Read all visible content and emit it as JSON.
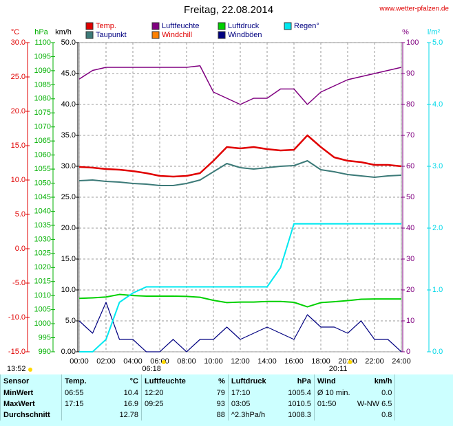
{
  "chart_data": {
    "type": "line",
    "title": "Freitag, 22.08.2014",
    "source": "www.wetter-pfalzen.de",
    "timestamp": "13:52",
    "sunrise": {
      "x": 6.3,
      "label": "06:18"
    },
    "sunset": {
      "x": 20.18,
      "label": "20:11"
    },
    "grid": true,
    "x": [
      0,
      1,
      2,
      3,
      4,
      5,
      6,
      7,
      8,
      9,
      10,
      11,
      12,
      13,
      14,
      15,
      16,
      17,
      18,
      19,
      20,
      21,
      22,
      23,
      24
    ],
    "xlim": [
      0,
      24
    ],
    "xticks": [
      {
        "value": 0,
        "label": "00:00"
      },
      {
        "value": 2,
        "label": "02:00"
      },
      {
        "value": 4,
        "label": "04:00"
      },
      {
        "value": 6,
        "label": "06:00"
      },
      {
        "value": 8,
        "label": "08:00"
      },
      {
        "value": 10,
        "label": "10:00"
      },
      {
        "value": 12,
        "label": "12:00"
      },
      {
        "value": 14,
        "label": "14:00"
      },
      {
        "value": 16,
        "label": "16:00"
      },
      {
        "value": 18,
        "label": "18:00"
      },
      {
        "value": 20,
        "label": "20:00"
      },
      {
        "value": 22,
        "label": "22:00"
      },
      {
        "value": 24,
        "label": "24:00"
      }
    ],
    "axes": [
      {
        "label": "°C",
        "color": "#e00000",
        "lim": [
          -15,
          30
        ],
        "ticks": [
          {
            "value": 30,
            "label": "30.0"
          },
          {
            "value": 25,
            "label": "25.0"
          },
          {
            "value": 20,
            "label": "20.0"
          },
          {
            "value": 15,
            "label": "15.0"
          },
          {
            "value": 10,
            "label": "10.0"
          },
          {
            "value": 5,
            "label": "5.0"
          },
          {
            "value": 0,
            "label": "0.0"
          },
          {
            "value": -5,
            "label": "-5.0"
          },
          {
            "value": -10,
            "label": "-10.0"
          },
          {
            "value": -15,
            "label": "-15.0"
          }
        ]
      },
      {
        "label": "hPa",
        "color": "#00b000",
        "lim": [
          990,
          1100
        ],
        "ticks": [
          1100,
          1095,
          1090,
          1085,
          1080,
          1075,
          1070,
          1065,
          1060,
          1055,
          1050,
          1045,
          1040,
          1035,
          1030,
          1025,
          1020,
          1015,
          1010,
          1005,
          1000,
          995,
          990
        ]
      },
      {
        "label": "km/h",
        "color": "#000000",
        "lim": [
          0,
          50
        ],
        "ticks": [
          {
            "value": 50,
            "label": "50.0"
          },
          {
            "value": 45,
            "label": "45.0"
          },
          {
            "value": 40,
            "label": "40.0"
          },
          {
            "value": 35,
            "label": "35.0"
          },
          {
            "value": 30,
            "label": "30.0"
          },
          {
            "value": 25,
            "label": "25.0"
          },
          {
            "value": 20,
            "label": "20.0"
          },
          {
            "value": 15,
            "label": "15.0"
          },
          {
            "value": 10,
            "label": "10.0"
          },
          {
            "value": 5,
            "label": "5.0"
          },
          {
            "value": 0,
            "label": "0.00"
          }
        ]
      },
      {
        "label": "%",
        "color": "#800080",
        "lim": [
          0,
          100
        ],
        "ticks": [
          100,
          90,
          80,
          70,
          60,
          50,
          40,
          30,
          20,
          10,
          0
        ]
      },
      {
        "label": "l/m²",
        "color": "#00d8e8",
        "lim": [
          0,
          5
        ],
        "ticks": [
          {
            "value": 5,
            "label": "5.0"
          },
          {
            "value": 4,
            "label": "4.0"
          },
          {
            "value": 3,
            "label": "3.0"
          },
          {
            "value": 2,
            "label": "2.0"
          },
          {
            "value": 1,
            "label": "1.0"
          },
          {
            "value": 0,
            "label": "0.0"
          }
        ]
      }
    ],
    "series": [
      {
        "name": "Temp.",
        "color": "#e00000",
        "axis": 0,
        "values": [
          11.9,
          11.8,
          11.6,
          11.5,
          11.3,
          11.0,
          10.6,
          10.5,
          10.6,
          11.0,
          12.8,
          14.8,
          14.6,
          14.8,
          14.5,
          14.3,
          14.4,
          16.5,
          14.8,
          13.3,
          12.8,
          12.6,
          12.2,
          12.2,
          12.0
        ]
      },
      {
        "name": "Taupunkt",
        "color": "#3c7a78",
        "axis": 0,
        "values": [
          9.9,
          10.0,
          9.8,
          9.7,
          9.5,
          9.4,
          9.2,
          9.2,
          9.5,
          10.0,
          11.2,
          12.4,
          11.8,
          11.6,
          11.8,
          12.0,
          12.1,
          12.8,
          11.5,
          11.2,
          10.8,
          10.6,
          10.4,
          10.6,
          10.7
        ]
      },
      {
        "name": "Luftfeuchte",
        "color": "#800080",
        "axis": 3,
        "values": [
          88.2,
          91,
          92,
          92,
          92,
          92,
          92,
          92,
          92,
          92.5,
          84,
          82,
          80,
          82,
          82,
          85,
          85,
          80,
          84,
          86,
          88,
          89,
          90,
          91,
          92
        ]
      },
      {
        "name": "Windchill",
        "color": "#ff8000",
        "axis": 0,
        "values": [
          null,
          null,
          null,
          null,
          null,
          null,
          null,
          null,
          null,
          null,
          null,
          null,
          null,
          null,
          null,
          null,
          null,
          null,
          null,
          null,
          null,
          null,
          null,
          null,
          null
        ]
      },
      {
        "name": "Luftdruck",
        "color": "#00d000",
        "axis": 1,
        "values": [
          1009.0,
          1009.2,
          1009.5,
          1010.4,
          1010.0,
          1009.8,
          1009.8,
          1009.8,
          1009.7,
          1009.4,
          1008.3,
          1007.5,
          1007.7,
          1007.7,
          1007.9,
          1007.9,
          1007.6,
          1006.0,
          1007.5,
          1007.8,
          1008.2,
          1008.7,
          1008.8,
          1008.8,
          1008.8
        ]
      },
      {
        "name": "Windböen",
        "color": "#000080",
        "axis": 2,
        "values": [
          5,
          3,
          8,
          2,
          2,
          0,
          0,
          2,
          0,
          2,
          2,
          4,
          2,
          3,
          4,
          3,
          2,
          6,
          4,
          4,
          3,
          5,
          2,
          2,
          0
        ]
      },
      {
        "name": "Regen°",
        "color": "#00e8f0",
        "axis": 4,
        "values": [
          0,
          0,
          0.2,
          0.8,
          0.95,
          1.05,
          1.05,
          1.05,
          1.05,
          1.05,
          1.05,
          1.05,
          1.05,
          1.05,
          1.05,
          1.36,
          2.07,
          2.07,
          2.07,
          2.07,
          2.07,
          2.07,
          2.07,
          2.07,
          2.07
        ]
      }
    ]
  },
  "table": {
    "header": [
      "Sensor",
      "Temp.",
      "°C",
      "Luftfeuchte",
      "%",
      "Luftdruck",
      "hPa",
      "Wind",
      "km/h"
    ],
    "rows": [
      [
        "MinWert",
        "06:55",
        "10.4",
        "12:20",
        "79",
        "17:10",
        "1005.4",
        "Ø 10 min.",
        "0.0"
      ],
      [
        "MaxWert",
        "17:15",
        "16.9",
        "09:25",
        "93",
        "03:05",
        "1010.5",
        "01:50",
        "W-NW 6.5"
      ],
      [
        "Durchschnitt",
        null,
        "12.78",
        null,
        "88",
        "^2.3hPa/h",
        "1008.3",
        null,
        "0.8"
      ]
    ]
  }
}
